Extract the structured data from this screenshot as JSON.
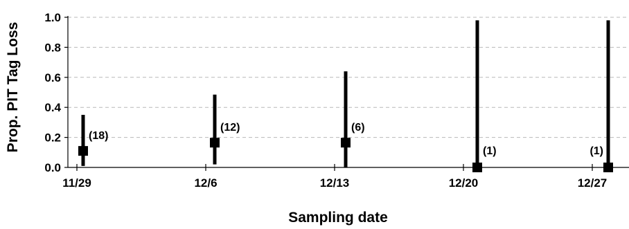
{
  "chart_data": {
    "type": "scatter",
    "title": "",
    "xlabel": "Sampling date",
    "ylabel": "Prop. PIT Tag Loss",
    "x_ticks": [
      "11/29",
      "12/6",
      "12/13",
      "12/20",
      "12/27"
    ],
    "y_ticks": [
      "0.0",
      "0.2",
      "0.4",
      "0.6",
      "0.8",
      "1.0"
    ],
    "ylim": [
      0,
      1.0
    ],
    "grid": true,
    "points": [
      {
        "x": "11/29",
        "y": 0.11,
        "lower": 0.01,
        "upper": 0.35,
        "n_label": "(18)"
      },
      {
        "x": "12/6",
        "y": 0.165,
        "lower": 0.02,
        "upper": 0.485,
        "n_label": "(12)"
      },
      {
        "x": "12/13",
        "y": 0.165,
        "lower": 0.0,
        "upper": 0.64,
        "n_label": "(6)"
      },
      {
        "x": "12/20",
        "y": 0.0,
        "lower": 0.0,
        "upper": 0.98,
        "n_label": "(1)"
      },
      {
        "x": "12/27",
        "y": 0.0,
        "lower": 0.0,
        "upper": 0.98,
        "n_label": "(1)"
      }
    ]
  }
}
